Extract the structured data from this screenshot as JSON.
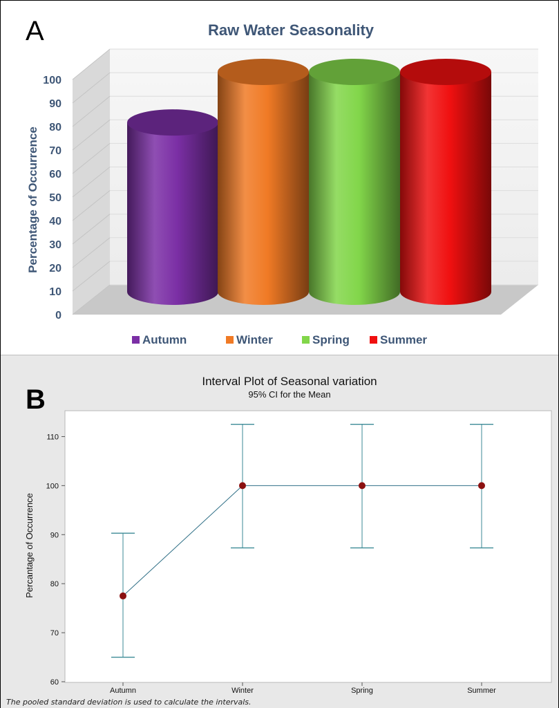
{
  "panel_a_letter": "A",
  "panel_b_letter": "B",
  "footnote": "The pooled standard deviation is used to calculate the intervals.",
  "colors": {
    "autumn": "#7b2fa5",
    "winter": "#f07a25",
    "spring": "#82d64a",
    "summer": "#f01010",
    "title_a": "#3e5676",
    "interval": "#3b8a96",
    "mean_point": "#8b1010"
  },
  "chart_data": [
    {
      "type": "bar",
      "title": "Raw Water Seasonality",
      "ylabel": "Percentage of Occurrence",
      "xlabel": "",
      "categories": [
        "Autumn",
        "Winter",
        "Spring",
        "Summer"
      ],
      "values": [
        77,
        100,
        100,
        100
      ],
      "ylim": [
        0,
        100
      ],
      "yticks": [
        0,
        10,
        20,
        30,
        40,
        50,
        60,
        70,
        80,
        90,
        100
      ],
      "legend": [
        "Autumn",
        "Winter",
        "Spring",
        "Summer"
      ],
      "legend_position": "bottom",
      "style": "3d-cylinder",
      "grid": true
    },
    {
      "type": "interval",
      "title": "Interval Plot of Seasonal variation",
      "subtitle": "95% CI for the Mean",
      "ylabel": "Percantage of Occurrence",
      "xlabel": "",
      "categories": [
        "Autumn",
        "Winter",
        "Spring",
        "Summer"
      ],
      "means": [
        77.5,
        100,
        100,
        100
      ],
      "ci_lower": [
        65,
        87.3,
        87.3,
        87.3
      ],
      "ci_upper": [
        90.3,
        112.5,
        112.5,
        112.5
      ],
      "ylim": [
        60,
        115
      ],
      "yticks": [
        60,
        70,
        80,
        90,
        100,
        110
      ],
      "grid": false
    }
  ]
}
